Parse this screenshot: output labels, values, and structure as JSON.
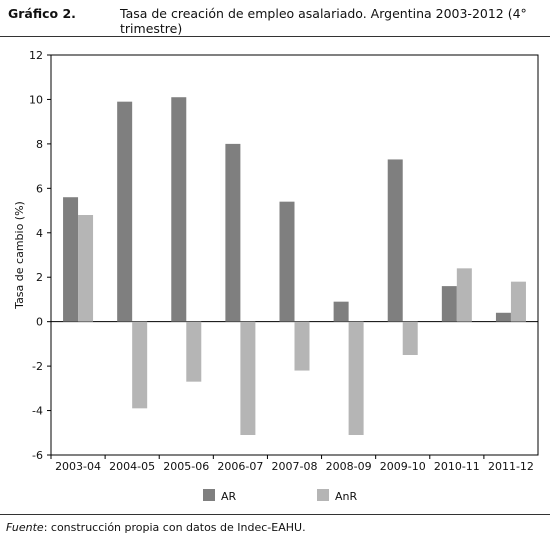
{
  "figure_label": "Gráfico 2.",
  "note": {
    "label": "Fuente",
    "text": ": construcción propia con datos de Indec-EAHU."
  },
  "chart_data": {
    "type": "bar",
    "title": "Tasa de creación de empleo asalariado. Argentina 2003-2012 (4° trimestre)",
    "xlabel": "",
    "ylabel": "Tasa de cambio (%)",
    "ylim": [
      -6,
      12
    ],
    "yticks": [
      -6,
      -4,
      -2,
      0,
      2,
      4,
      6,
      8,
      10,
      12
    ],
    "grid": false,
    "legend_position": "bottom",
    "categories": [
      "2003-04",
      "2004-05",
      "2005-06",
      "2006-07",
      "2007-08",
      "2008-09",
      "2009-10",
      "2010-11",
      "2011-12"
    ],
    "series": [
      {
        "name": "AR",
        "color": "#7f7f7f",
        "values": [
          5.6,
          9.9,
          10.1,
          8.0,
          5.4,
          0.9,
          7.3,
          1.6,
          0.4
        ]
      },
      {
        "name": "AnR",
        "color": "#b5b5b5",
        "values": [
          4.8,
          -3.9,
          -2.7,
          -5.1,
          -2.2,
          -5.1,
          -1.5,
          2.4,
          1.8
        ]
      }
    ]
  }
}
